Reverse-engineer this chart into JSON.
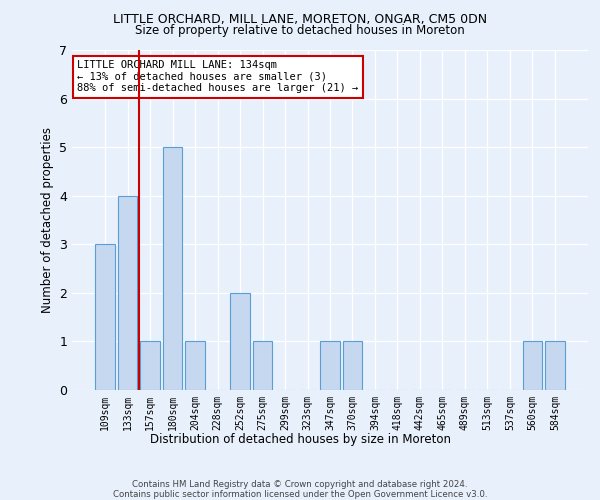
{
  "title": "LITTLE ORCHARD, MILL LANE, MORETON, ONGAR, CM5 0DN",
  "subtitle": "Size of property relative to detached houses in Moreton",
  "xlabel": "Distribution of detached houses by size in Moreton",
  "ylabel": "Number of detached properties",
  "categories": [
    "109sqm",
    "133sqm",
    "157sqm",
    "180sqm",
    "204sqm",
    "228sqm",
    "252sqm",
    "275sqm",
    "299sqm",
    "323sqm",
    "347sqm",
    "370sqm",
    "394sqm",
    "418sqm",
    "442sqm",
    "465sqm",
    "489sqm",
    "513sqm",
    "537sqm",
    "560sqm",
    "584sqm"
  ],
  "values": [
    3,
    4,
    1,
    5,
    1,
    0,
    2,
    1,
    0,
    0,
    1,
    1,
    0,
    0,
    0,
    0,
    0,
    0,
    0,
    1,
    1
  ],
  "bar_color": "#c5d8f0",
  "bar_edge_color": "#5a9fd4",
  "background_color": "#e8f0fb",
  "grid_color": "#ffffff",
  "red_line_x": 1.5,
  "annotation_text": "LITTLE ORCHARD MILL LANE: 134sqm\n← 13% of detached houses are smaller (3)\n88% of semi-detached houses are larger (21) →",
  "annotation_box_color": "#ffffff",
  "annotation_box_edge_color": "#cc0000",
  "footer_text": "Contains HM Land Registry data © Crown copyright and database right 2024.\nContains public sector information licensed under the Open Government Licence v3.0.",
  "ylim": [
    0,
    7
  ],
  "yticks": [
    0,
    1,
    2,
    3,
    4,
    5,
    6,
    7
  ]
}
